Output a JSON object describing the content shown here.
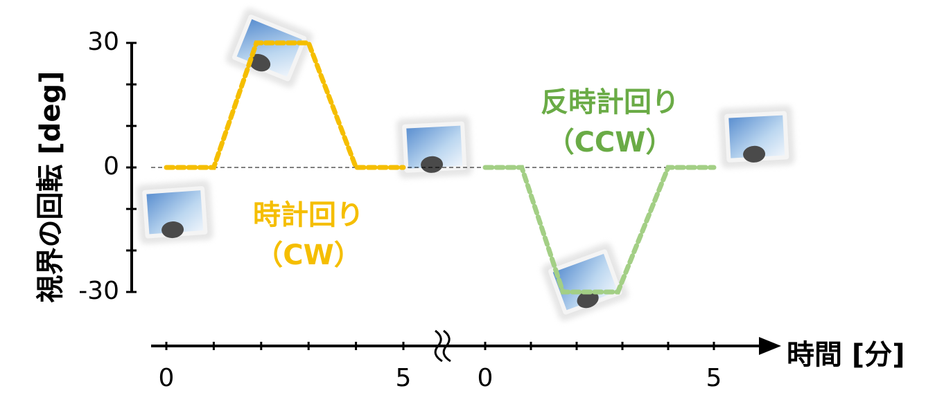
{
  "chart_data": {
    "type": "line",
    "y_label": "視界の回転 [deg]",
    "x_label": "時間 [分]",
    "ylim": [
      -30,
      30
    ],
    "yticks": [
      -30,
      0,
      30
    ],
    "yminorticks": [
      -30,
      -20,
      -10,
      0,
      10,
      20,
      30
    ],
    "xlim": [
      0,
      5
    ],
    "xticks": [
      0,
      5
    ],
    "xminorticks": [
      0,
      1,
      2,
      3,
      4,
      5
    ],
    "zero_line": true,
    "series": [
      {
        "name": "時計回り",
        "abbr": "（CW）",
        "color": "#f5be00",
        "x": [
          0,
          1,
          1.9,
          3,
          4,
          5
        ],
        "values": [
          0,
          0,
          30,
          30,
          0,
          0
        ]
      },
      {
        "name": "反時計回り",
        "abbr": "（CCW）",
        "color": "#a3cf85",
        "label_color": "#6aab46",
        "x": [
          0,
          0.8,
          1.7,
          2.9,
          4,
          5
        ],
        "values": [
          0,
          0,
          -30,
          -30,
          0,
          0
        ]
      }
    ]
  }
}
